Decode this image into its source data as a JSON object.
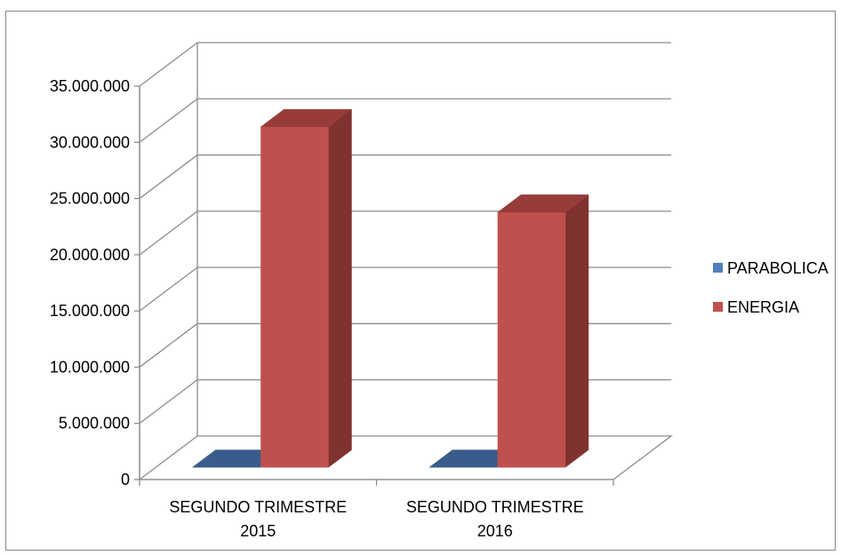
{
  "chart_data": {
    "type": "bar",
    "categories": [
      "SEGUNDO TRIMESTRE 2015",
      "SEGUNDO TRIMESTRE 2016"
    ],
    "category_lines": [
      [
        "SEGUNDO TRIMESTRE",
        "2015"
      ],
      [
        "SEGUNDO TRIMESTRE",
        "2016"
      ]
    ],
    "series": [
      {
        "name": "PARABOLICA",
        "values": [
          0,
          0
        ]
      },
      {
        "name": "ENERGIA",
        "values": [
          30300000,
          22700000
        ]
      }
    ],
    "ylim": [
      0,
      35000000
    ],
    "yticks": [
      0,
      5000000,
      10000000,
      15000000,
      20000000,
      25000000,
      30000000,
      35000000
    ],
    "ytick_labels": [
      "0",
      "5.000.000",
      "10.000.000",
      "15.000.000",
      "20.000.000",
      "25.000.000",
      "30.000.000",
      "35.000.000"
    ],
    "grid": true,
    "style": "3d-clustered-column",
    "legend_position": "right",
    "colors": {
      "PARABOLICA": {
        "front": "#4f81bd",
        "top": "#4f81bd",
        "side": "#385d8a"
      },
      "ENERGIA": {
        "front": "#c0504d",
        "top": "#983c3a",
        "side": "#7f3230"
      },
      "grid": "#8c8c8c",
      "border": "#868686"
    }
  }
}
